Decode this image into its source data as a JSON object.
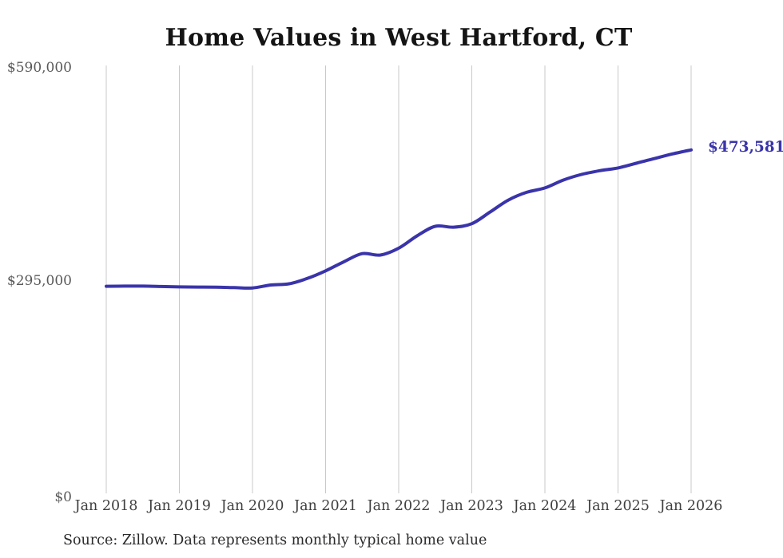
{
  "title": "Home Values in West Hartford, CT",
  "source_note": "Source: Zillow. Data represents monthly typical home value",
  "colors": {
    "accent": "#3a34aa",
    "gridline": "#c9c9c9",
    "y_tick_text": "#595959",
    "x_tick_text": "#3f3f3f",
    "title_text": "#141414",
    "source_text": "#2a2a2a",
    "background": "#ffffff"
  },
  "chart_data": {
    "type": "line",
    "title": "Home Values in West Hartford, CT",
    "xlabel": "",
    "ylabel": "",
    "ylim": [
      0,
      590000
    ],
    "grid": "vertical-only",
    "legend_position": "none",
    "x_tick_labels": [
      "Jan 2018",
      "Jan 2019",
      "Jan 2020",
      "Jan 2021",
      "Jan 2022",
      "Jan 2023",
      "Jan 2024",
      "Jan 2025",
      "Jan 2026"
    ],
    "y_tick_labels": [
      "$0",
      "$295,000",
      "$590,000"
    ],
    "end_label": "$473,581",
    "end_value": 473581,
    "series": [
      {
        "name": "Monthly typical home value",
        "color": "#3a34aa",
        "dates": [
          "2018-01",
          "2018-04",
          "2018-07",
          "2018-10",
          "2019-01",
          "2019-04",
          "2019-07",
          "2019-10",
          "2020-01",
          "2020-04",
          "2020-07",
          "2020-10",
          "2021-01",
          "2021-04",
          "2021-07",
          "2021-10",
          "2022-01",
          "2022-04",
          "2022-07",
          "2022-10",
          "2023-01",
          "2023-04",
          "2023-07",
          "2023-10",
          "2024-01",
          "2024-04",
          "2024-07",
          "2024-10",
          "2025-01",
          "2025-04",
          "2025-07",
          "2025-10",
          "2026-01"
        ],
        "values": [
          285500,
          285800,
          285800,
          285200,
          284700,
          284400,
          284300,
          283700,
          283200,
          287300,
          288900,
          296300,
          306800,
          319300,
          330500,
          328600,
          338000,
          355000,
          368200,
          367000,
          371800,
          387900,
          404400,
          415100,
          421100,
          431900,
          439700,
          444900,
          448700,
          455200,
          461700,
          468200,
          473581
        ]
      }
    ]
  }
}
